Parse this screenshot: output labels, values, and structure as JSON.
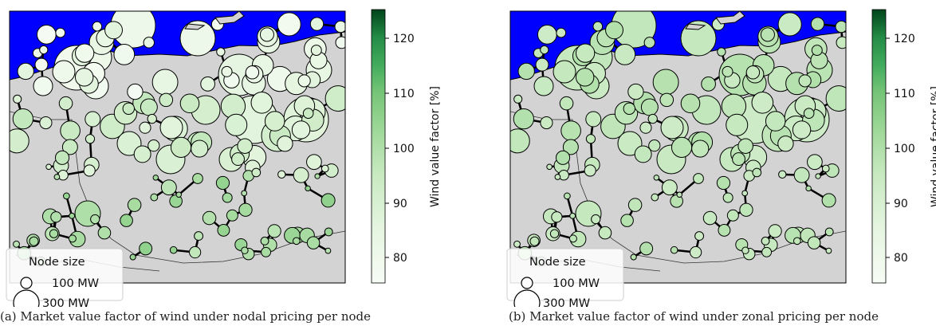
{
  "panels": [
    {
      "caption": "(a) Market value factor of wind under nodal pricing per node",
      "colorbar": {
        "label": "Wind value factor [%]",
        "ticks": [
          "80",
          "90",
          "100",
          "110",
          "120"
        ]
      },
      "legend": {
        "title": "Node size",
        "entries": [
          "100 MW",
          "300 MW"
        ]
      }
    },
    {
      "caption": "(b) Market value factor of wind under zonal pricing per node",
      "colorbar": {
        "label": "Wind value factor [%]",
        "ticks": [
          "80",
          "90",
          "100",
          "110",
          "120"
        ]
      },
      "legend": {
        "title": "Node size",
        "entries": [
          "100 MW",
          "300 MW"
        ]
      }
    }
  ],
  "chart_data": [
    {
      "type": "scatter",
      "title": "",
      "color_label": "Wind value factor [%]",
      "color_range": [
        75,
        125
      ],
      "color_ticks": [
        80,
        90,
        100,
        110,
        120
      ],
      "colormap": "Greens",
      "colors": {
        "sea": "#0000ff",
        "land": "#d3d3d3",
        "line": "#000000"
      },
      "size_legend_mw": [
        100,
        300
      ],
      "value_factor_range_approx": [
        75,
        105
      ]
    },
    {
      "type": "scatter",
      "title": "",
      "color_label": "Wind value factor [%]",
      "color_range": [
        75,
        125
      ],
      "color_ticks": [
        80,
        90,
        100,
        110,
        120
      ],
      "colormap": "Greens",
      "colors": {
        "sea": "#0000ff",
        "land": "#d3d3d3",
        "line": "#000000"
      },
      "size_legend_mw": [
        100,
        300
      ],
      "value_factor_range_approx": [
        90,
        100
      ]
    }
  ]
}
